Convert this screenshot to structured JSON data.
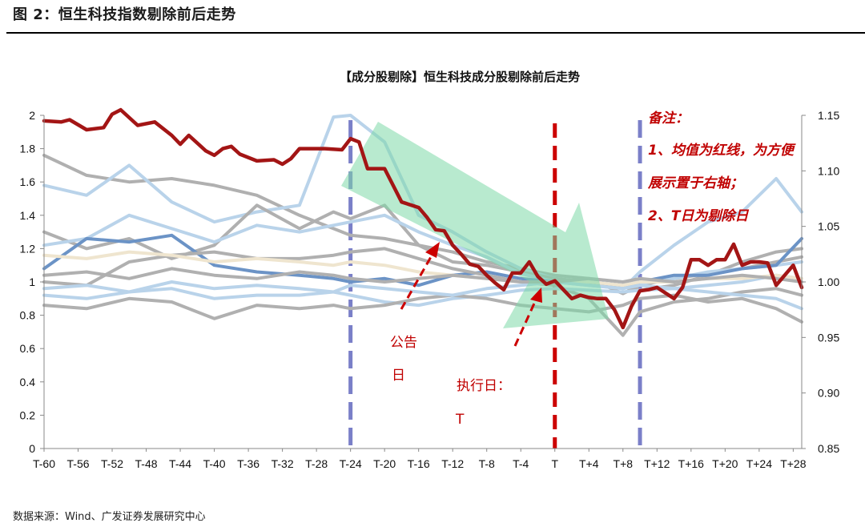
{
  "heading": "图 2：恒生科技指数剔除前后走势",
  "source": "数据来源：Wind、广发证券发展研究中心",
  "notes": {
    "title": "备注：",
    "line1": "1、均值为红线，为方便",
    "line2": "展示置于右轴；",
    "line3": "2、T日为剔除日"
  },
  "annotations": {
    "announce_1": "公告",
    "announce_2": "日",
    "exec_1": "执行日：",
    "exec_2": "T"
  },
  "colors": {
    "mean": "#a31515",
    "marker_dashed": "#7a7fc8",
    "t_dashed": "#cc0000",
    "arrow_fill": "#7ed9a8",
    "grey": "#b0b0b0",
    "light_blue": "#b9d3ea",
    "mid_blue": "#6b93c6",
    "beige": "#efe5cf"
  },
  "chart_data": {
    "type": "line",
    "title": "【成分股剔除】恒生科技成分股剔除前后走势",
    "x_labels": [
      "T-60",
      "T-56",
      "T-52",
      "T-48",
      "T-44",
      "T-40",
      "T-36",
      "T-32",
      "T-28",
      "T-24",
      "T-20",
      "T-16",
      "T-12",
      "T-8",
      "T-4",
      "T",
      "T+4",
      "T+8",
      "T+12",
      "T+16",
      "T+20",
      "T+24",
      "T+28"
    ],
    "x_range": [
      -60,
      29
    ],
    "ylim_left": [
      0,
      2
    ],
    "yticks_left": [
      "0",
      "0.2",
      "0.4",
      "0.6",
      "0.8",
      "1",
      "1.2",
      "1.4",
      "1.6",
      "1.8",
      "2"
    ],
    "ylim_right": [
      0.85,
      1.15
    ],
    "yticks_right": [
      "0.85",
      "0.90",
      "0.95",
      "1.00",
      "1.05",
      "1.10",
      "1.15"
    ],
    "grid": false,
    "vertical_markers": [
      {
        "x": -24,
        "style": "dashed",
        "color": "#7a7fc8"
      },
      {
        "x": 0,
        "style": "dashed",
        "color": "#cc0000"
      },
      {
        "x": 10,
        "style": "dashed",
        "color": "#7a7fc8"
      }
    ],
    "mean_series": {
      "name": "均值",
      "axis": "right",
      "x": [
        -60,
        -58,
        -57,
        -55,
        -53,
        -52,
        -51,
        -49,
        -47,
        -45,
        -44,
        -43,
        -41,
        -40,
        -39,
        -38,
        -37,
        -35,
        -33,
        -32,
        -31,
        -30,
        -29,
        -27,
        -25,
        -24,
        -23,
        -22,
        -20,
        -19,
        -18,
        -16,
        -15,
        -14,
        -13,
        -12,
        -11,
        -10,
        -9,
        -8,
        -7,
        -6,
        -5,
        -4,
        -3,
        -2,
        -1,
        0,
        1,
        2,
        3,
        4,
        5,
        6,
        7,
        8,
        9,
        10,
        11,
        12,
        13,
        14,
        15,
        16,
        17,
        18,
        19,
        20,
        21,
        22,
        23,
        24,
        25,
        26,
        27,
        28,
        29
      ],
      "y": [
        1.145,
        1.144,
        1.146,
        1.137,
        1.139,
        1.151,
        1.155,
        1.141,
        1.144,
        1.132,
        1.124,
        1.132,
        1.118,
        1.114,
        1.12,
        1.122,
        1.115,
        1.109,
        1.11,
        1.106,
        1.111,
        1.12,
        1.12,
        1.12,
        1.119,
        1.129,
        1.126,
        1.102,
        1.102,
        1.087,
        1.072,
        1.067,
        1.058,
        1.047,
        1.046,
        1.033,
        1.025,
        1.016,
        1.014,
        1.006,
        0.999,
        0.993,
        1.008,
        1.008,
        1.018,
        1.005,
        0.998,
        1.001,
        0.993,
        0.985,
        0.988,
        0.986,
        0.985,
        0.985,
        0.975,
        0.959,
        0.978,
        0.992,
        0.993,
        0.995,
        0.99,
        0.985,
        0.995,
        1.02,
        1.02,
        1.015,
        1.02,
        1.02,
        1.034,
        1.015,
        1.018,
        1.018,
        1.017,
        0.997,
        1.006,
        1.015,
        0.995
      ]
    },
    "component_series": [
      {
        "color": "grey",
        "x": [
          -60,
          -55,
          -50,
          -45,
          -40,
          -35,
          -30,
          -26,
          -24,
          -20,
          -16,
          -12,
          -8,
          -4,
          0,
          4,
          8,
          10,
          14,
          18,
          22,
          26,
          29
        ],
        "y": [
          1.76,
          1.64,
          1.6,
          1.62,
          1.58,
          1.52,
          1.4,
          1.32,
          1.28,
          1.26,
          1.22,
          1.18,
          1.12,
          1.08,
          1.04,
          1.02,
          0.93,
          0.98,
          1.02,
          1.05,
          1.08,
          1.12,
          1.15
        ]
      },
      {
        "color": "light_blue",
        "x": [
          -60,
          -55,
          -50,
          -45,
          -40,
          -35,
          -30,
          -26,
          -24,
          -20,
          -16,
          -12,
          -8,
          -4,
          0,
          4,
          8,
          10,
          14,
          18,
          22,
          26,
          29
        ],
        "y": [
          1.58,
          1.52,
          1.7,
          1.48,
          1.36,
          1.42,
          1.46,
          1.99,
          2.0,
          1.84,
          1.4,
          1.3,
          1.18,
          1.08,
          1.02,
          0.99,
          0.96,
          1.06,
          1.22,
          1.36,
          1.42,
          1.62,
          1.42
        ]
      },
      {
        "color": "grey",
        "x": [
          -60,
          -55,
          -50,
          -45,
          -40,
          -35,
          -30,
          -26,
          -24,
          -20,
          -16,
          -12,
          -8,
          -4,
          0,
          4,
          8,
          10,
          14,
          18,
          22,
          26,
          29
        ],
        "y": [
          1.3,
          1.2,
          1.26,
          1.14,
          1.22,
          1.46,
          1.32,
          1.42,
          1.38,
          1.46,
          1.22,
          1.12,
          1.1,
          1.06,
          1.02,
          1.0,
          0.97,
          0.95,
          0.98,
          1.04,
          1.12,
          1.18,
          1.2
        ]
      },
      {
        "color": "light_blue",
        "x": [
          -60,
          -55,
          -50,
          -45,
          -40,
          -35,
          -30,
          -26,
          -24,
          -20,
          -16,
          -12,
          -8,
          -4,
          0,
          4,
          8,
          10,
          14,
          18,
          22,
          26,
          29
        ],
        "y": [
          1.22,
          1.26,
          1.4,
          1.32,
          1.24,
          1.34,
          1.3,
          1.34,
          1.36,
          1.4,
          1.3,
          1.22,
          1.15,
          1.05,
          1.0,
          0.98,
          0.96,
          0.99,
          1.02,
          1.06,
          1.08,
          1.1,
          1.12
        ]
      },
      {
        "color": "mid_blue",
        "x": [
          -60,
          -55,
          -50,
          -45,
          -40,
          -35,
          -30,
          -26,
          -24,
          -20,
          -16,
          -12,
          -8,
          -4,
          0,
          4,
          8,
          10,
          14,
          18,
          22,
          26,
          29
        ],
        "y": [
          1.08,
          1.26,
          1.24,
          1.28,
          1.1,
          1.06,
          1.04,
          1.02,
          1.0,
          1.02,
          0.98,
          1.04,
          1.06,
          1.02,
          1.0,
          1.0,
          0.98,
          1.0,
          1.04,
          1.04,
          1.08,
          1.1,
          1.26
        ]
      },
      {
        "color": "grey",
        "x": [
          -60,
          -55,
          -50,
          -45,
          -40,
          -35,
          -30,
          -26,
          -24,
          -20,
          -16,
          -12,
          -8,
          -4,
          0,
          4,
          8,
          10,
          14,
          18,
          22,
          26,
          29
        ],
        "y": [
          1.0,
          0.98,
          1.12,
          1.16,
          1.18,
          1.14,
          1.14,
          1.16,
          1.18,
          1.2,
          1.14,
          1.08,
          1.04,
          1.0,
          0.98,
          0.9,
          0.68,
          0.82,
          0.88,
          0.9,
          0.94,
          0.96,
          0.92
        ]
      },
      {
        "color": "light_blue",
        "x": [
          -60,
          -55,
          -50,
          -45,
          -40,
          -35,
          -30,
          -26,
          -24,
          -20,
          -16,
          -12,
          -8,
          -4,
          0,
          4,
          8,
          10,
          14,
          18,
          22,
          26,
          29
        ],
        "y": [
          0.92,
          0.9,
          0.94,
          0.96,
          0.9,
          0.92,
          0.92,
          0.94,
          0.92,
          0.88,
          0.86,
          0.9,
          0.92,
          0.95,
          0.96,
          0.95,
          0.94,
          0.95,
          0.96,
          0.98,
          1.0,
          1.04,
          1.02
        ]
      },
      {
        "color": "grey",
        "x": [
          -60,
          -55,
          -50,
          -45,
          -40,
          -35,
          -30,
          -26,
          -24,
          -20,
          -16,
          -12,
          -8,
          -4,
          0,
          4,
          8,
          10,
          14,
          18,
          22,
          26,
          29
        ],
        "y": [
          0.86,
          0.84,
          0.9,
          0.88,
          0.78,
          0.86,
          0.84,
          0.86,
          0.84,
          0.86,
          0.9,
          0.92,
          0.9,
          0.86,
          0.84,
          0.82,
          0.86,
          0.9,
          0.92,
          0.88,
          0.9,
          0.84,
          0.76
        ]
      },
      {
        "color": "beige",
        "x": [
          -60,
          -55,
          -50,
          -45,
          -40,
          -35,
          -30,
          -26,
          -24,
          -20,
          -16,
          -12,
          -8,
          -4,
          0,
          4,
          8,
          10,
          14,
          18,
          22,
          26,
          29
        ],
        "y": [
          1.16,
          1.14,
          1.18,
          1.16,
          1.12,
          1.14,
          1.12,
          1.1,
          1.12,
          1.1,
          1.06,
          1.04,
          1.02,
          1.0,
          1.0,
          1.0,
          0.98,
          1.0,
          1.0,
          1.02,
          1.02,
          1.04,
          1.02
        ]
      },
      {
        "color": "light_blue",
        "x": [
          -60,
          -55,
          -50,
          -45,
          -40,
          -35,
          -30,
          -26,
          -24,
          -20,
          -16,
          -12,
          -8,
          -4,
          0,
          4,
          8,
          10,
          14,
          18,
          22,
          26,
          29
        ],
        "y": [
          0.96,
          0.98,
          0.94,
          1.0,
          0.96,
          0.98,
          0.96,
          0.94,
          0.98,
          0.96,
          0.94,
          0.92,
          0.96,
          0.98,
          1.0,
          0.98,
          0.96,
          0.98,
          0.96,
          0.94,
          0.92,
          0.9,
          0.84
        ]
      },
      {
        "color": "grey",
        "x": [
          -60,
          -55,
          -50,
          -45,
          -40,
          -35,
          -30,
          -26,
          -24,
          -20,
          -16,
          -12,
          -8,
          -4,
          0,
          4,
          8,
          10,
          14,
          18,
          22,
          26,
          29
        ],
        "y": [
          1.04,
          1.06,
          1.02,
          1.08,
          1.04,
          1.02,
          1.06,
          1.04,
          1.02,
          1.0,
          1.02,
          1.04,
          1.02,
          1.0,
          1.0,
          1.02,
          1.0,
          1.02,
          1.0,
          1.02,
          1.04,
          1.02,
          1.0
        ]
      }
    ]
  }
}
